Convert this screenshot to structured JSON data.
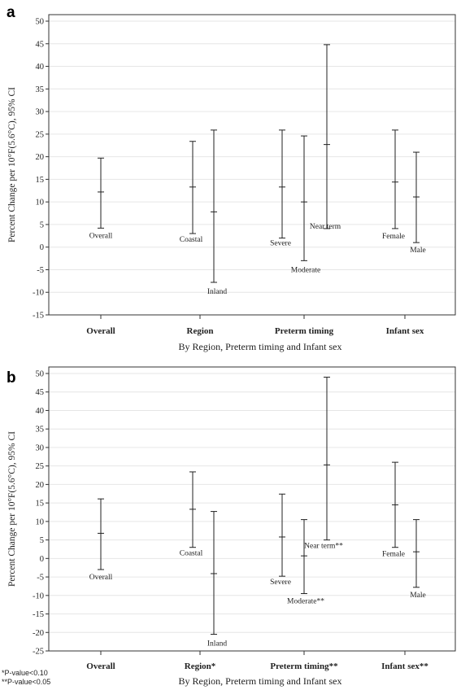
{
  "chart_data": [
    {
      "panel": "a",
      "type": "errorbar",
      "xlabel": "By Region, Preterm timing and Infant sex",
      "ylabel": "Percent Change per 10°F(5.6°C), 95% CI",
      "ylim": [
        -15,
        50
      ],
      "yticks": [
        -15,
        -10,
        -5,
        0,
        5,
        10,
        15,
        20,
        25,
        30,
        35,
        40,
        45,
        50
      ],
      "groups": [
        "Overall",
        "Region",
        "Preterm timing",
        "Infant sex"
      ],
      "grid": true,
      "points": [
        {
          "label": "Overall",
          "group": 0,
          "est": 12.2,
          "lower": 4.2,
          "upper": 19.7
        },
        {
          "label": "Coastal",
          "group": 1,
          "est": 13.3,
          "lower": 3.0,
          "upper": 23.4
        },
        {
          "label": "Inland",
          "group": 1,
          "est": 7.8,
          "lower": -7.8,
          "upper": 25.9
        },
        {
          "label": "Severe",
          "group": 2,
          "est": 13.3,
          "lower": 2.0,
          "upper": 25.9
        },
        {
          "label": "Moderate",
          "group": 2,
          "est": 10.0,
          "lower": -3.0,
          "upper": 24.6
        },
        {
          "label": "Near term",
          "group": 2,
          "est": 22.7,
          "lower": 4.1,
          "upper": 44.8
        },
        {
          "label": "Female",
          "group": 3,
          "est": 14.4,
          "lower": 4.1,
          "upper": 25.9
        },
        {
          "label": "Male",
          "group": 3,
          "est": 11.1,
          "lower": 1.0,
          "upper": 21.0
        }
      ]
    },
    {
      "panel": "b",
      "type": "errorbar",
      "xlabel": "By Region, Preterm timing and Infant sex",
      "ylabel": "Percent Change per 10°F(5.6°C), 95% CI",
      "ylim": [
        -25,
        50
      ],
      "yticks": [
        -25,
        -20,
        -15,
        -10,
        -5,
        0,
        5,
        10,
        15,
        20,
        25,
        30,
        35,
        40,
        45,
        50
      ],
      "groups": [
        "Overall",
        "Region*",
        "Preterm timing**",
        "Infant sex**"
      ],
      "grid": true,
      "points": [
        {
          "label": "Overall",
          "group": 0,
          "est": 6.8,
          "lower": -3.0,
          "upper": 16.1
        },
        {
          "label": "Coastal",
          "group": 1,
          "est": 13.3,
          "lower": 3.0,
          "upper": 23.4
        },
        {
          "label": "Inland",
          "group": 1,
          "est": -4.1,
          "lower": -20.5,
          "upper": 12.7
        },
        {
          "label": "Severe",
          "group": 2,
          "est": 5.8,
          "lower": -4.8,
          "upper": 17.4
        },
        {
          "label": "Moderate**",
          "group": 2,
          "est": 0.7,
          "lower": -9.5,
          "upper": 10.5
        },
        {
          "label": "Near term**",
          "group": 2,
          "est": 25.3,
          "lower": 5.0,
          "upper": 49.0
        },
        {
          "label": "Female",
          "group": 3,
          "est": 14.5,
          "lower": 3.0,
          "upper": 26.0
        },
        {
          "label": "Male",
          "group": 3,
          "est": 1.8,
          "lower": -7.8,
          "upper": 10.5
        }
      ],
      "footnotes": [
        "*P-value<0.10",
        "**P-value<0.05"
      ]
    }
  ]
}
